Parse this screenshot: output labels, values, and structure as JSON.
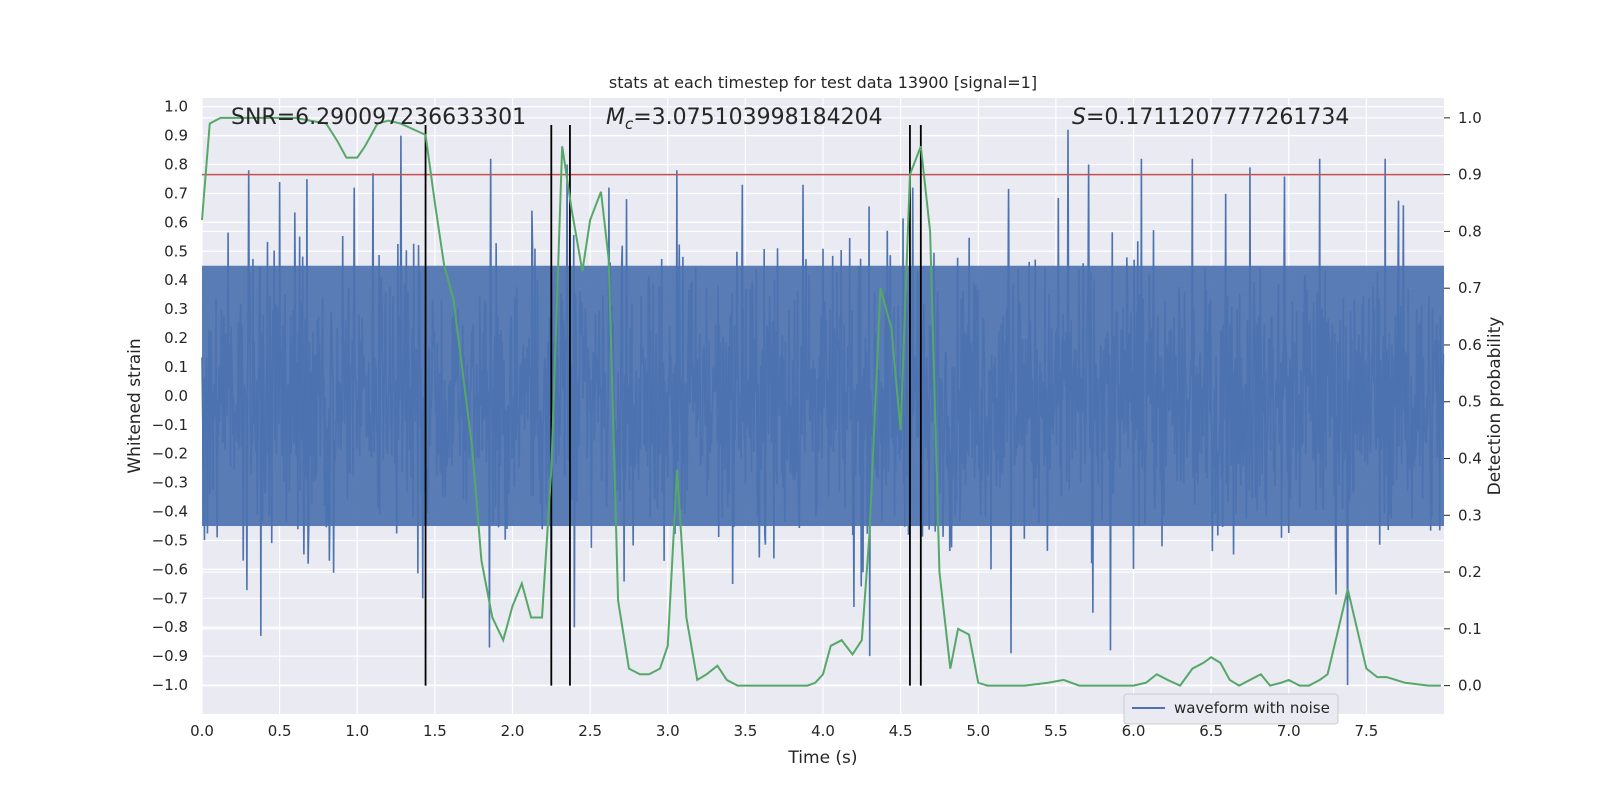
{
  "chart_data": {
    "type": "line",
    "title": "stats at each timestep for test data 13900 [signal=1]",
    "xlabel": "Time (s)",
    "ylabel": "Whitened strain",
    "ylabel_right": "Detection probability",
    "xlim": [
      0.0,
      8.0
    ],
    "ylim": [
      -1.1,
      1.03
    ],
    "ylim_right": [
      -0.05,
      1.035
    ],
    "x_ticks": [
      "0.0",
      "0.5",
      "1.0",
      "1.5",
      "2.0",
      "2.5",
      "3.0",
      "3.5",
      "4.0",
      "4.5",
      "5.0",
      "5.5",
      "6.0",
      "6.5",
      "7.0",
      "7.5"
    ],
    "y_ticks": [
      "−1.0",
      "−0.9",
      "−0.8",
      "−0.7",
      "−0.6",
      "−0.5",
      "−0.4",
      "−0.3",
      "−0.2",
      "−0.1",
      "0.0",
      "0.1",
      "0.2",
      "0.3",
      "0.4",
      "0.5",
      "0.6",
      "0.7",
      "0.8",
      "0.9",
      "1.0"
    ],
    "y_ticks_right": [
      "0.0",
      "0.1",
      "0.2",
      "0.3",
      "0.4",
      "0.5",
      "0.6",
      "0.7",
      "0.8",
      "0.9",
      "1.0"
    ],
    "annotations": {
      "snr": "SNR=6.290097236633301",
      "mc_symbol": "M",
      "mc_sub": "c",
      "mc_value": "=3.075103998184204",
      "s_symbol": "S",
      "s_value": "=0.1711207777261734"
    },
    "threshold": {
      "value": 0.9,
      "axis": "right",
      "color": "#c44e52"
    },
    "vertical_lines": [
      1.44,
      2.25,
      2.37,
      4.56,
      4.63
    ],
    "legend": {
      "label": "waveform with noise",
      "location": "lower-right"
    },
    "series": [
      {
        "name": "waveform with noise",
        "axis": "left",
        "color": "#4c72b0",
        "kind": "noise",
        "x_range": [
          0.0,
          8.0
        ],
        "samples": 2048,
        "envelope": [
          0.45,
          0.45
        ],
        "peaks": [
          {
            "x": 0.3,
            "y": 0.78
          },
          {
            "x": 0.38,
            "y": -0.83
          },
          {
            "x": 0.5,
            "y": 0.74
          },
          {
            "x": 0.98,
            "y": 0.72
          },
          {
            "x": 1.1,
            "y": 0.77
          },
          {
            "x": 1.28,
            "y": 0.9
          },
          {
            "x": 1.42,
            "y": -0.7
          },
          {
            "x": 1.85,
            "y": -0.87
          },
          {
            "x": 1.86,
            "y": 0.82
          },
          {
            "x": 2.25,
            "y": -0.84
          },
          {
            "x": 2.35,
            "y": 0.8
          },
          {
            "x": 2.4,
            "y": -0.8
          },
          {
            "x": 2.62,
            "y": 0.72
          },
          {
            "x": 3.06,
            "y": 0.78
          },
          {
            "x": 3.48,
            "y": 0.73
          },
          {
            "x": 3.87,
            "y": 0.73
          },
          {
            "x": 4.2,
            "y": -0.73
          },
          {
            "x": 4.3,
            "y": -0.9
          },
          {
            "x": 4.58,
            "y": 0.72
          },
          {
            "x": 5.21,
            "y": -0.89
          },
          {
            "x": 5.58,
            "y": 0.92
          },
          {
            "x": 5.71,
            "y": 0.8
          },
          {
            "x": 5.74,
            "y": -0.75
          },
          {
            "x": 5.85,
            "y": -0.88
          },
          {
            "x": 6.05,
            "y": 0.82
          },
          {
            "x": 6.38,
            "y": 0.82
          },
          {
            "x": 6.75,
            "y": 0.79
          },
          {
            "x": 7.2,
            "y": 0.82
          },
          {
            "x": 7.38,
            "y": -1.0
          },
          {
            "x": 7.62,
            "y": 0.82
          }
        ]
      },
      {
        "name": "Detection probability",
        "axis": "right",
        "color": "#55a868",
        "x": [
          0.0,
          0.05,
          0.12,
          0.2,
          0.3,
          0.4,
          0.5,
          0.6,
          0.7,
          0.8,
          0.87,
          0.93,
          1.0,
          1.05,
          1.13,
          1.2,
          1.28,
          1.36,
          1.44,
          1.5,
          1.56,
          1.62,
          1.68,
          1.74,
          1.8,
          1.87,
          1.94,
          2.0,
          2.06,
          2.12,
          2.19,
          2.25,
          2.32,
          2.38,
          2.45,
          2.5,
          2.57,
          2.62,
          2.68,
          2.75,
          2.82,
          2.88,
          2.95,
          3.0,
          3.06,
          3.12,
          3.19,
          3.25,
          3.32,
          3.38,
          3.45,
          3.55,
          3.7,
          3.9,
          3.95,
          4.0,
          4.05,
          4.12,
          4.19,
          4.25,
          4.3,
          4.37,
          4.44,
          4.5,
          4.56,
          4.63,
          4.69,
          4.75,
          4.82,
          4.87,
          4.94,
          5.0,
          5.06,
          5.2,
          5.3,
          5.45,
          5.55,
          5.65,
          5.75,
          5.9,
          6.0,
          6.08,
          6.15,
          6.22,
          6.3,
          6.38,
          6.45,
          6.5,
          6.56,
          6.62,
          6.68,
          6.75,
          6.82,
          6.88,
          6.95,
          7.0,
          7.07,
          7.13,
          7.2,
          7.25,
          7.32,
          7.38,
          7.44,
          7.5,
          7.57,
          7.63,
          7.75,
          7.9,
          7.98
        ],
        "values": [
          0.82,
          0.99,
          1.0,
          1.0,
          1.0,
          1.0,
          1.0,
          1.0,
          0.995,
          0.99,
          0.96,
          0.93,
          0.93,
          0.95,
          0.99,
          0.995,
          0.99,
          0.98,
          0.97,
          0.85,
          0.74,
          0.68,
          0.55,
          0.42,
          0.22,
          0.12,
          0.08,
          0.14,
          0.18,
          0.12,
          0.12,
          0.38,
          0.95,
          0.84,
          0.73,
          0.82,
          0.87,
          0.75,
          0.15,
          0.03,
          0.02,
          0.02,
          0.03,
          0.07,
          0.38,
          0.12,
          0.01,
          0.02,
          0.035,
          0.01,
          0.0,
          0.0,
          0.0,
          0.0,
          0.005,
          0.02,
          0.07,
          0.08,
          0.055,
          0.08,
          0.27,
          0.7,
          0.63,
          0.45,
          0.9,
          0.95,
          0.8,
          0.2,
          0.03,
          0.1,
          0.09,
          0.005,
          0.0,
          0.0,
          0.0,
          0.005,
          0.01,
          0.0,
          0.0,
          0.0,
          0.0,
          0.005,
          0.02,
          0.01,
          0.0,
          0.03,
          0.04,
          0.05,
          0.04,
          0.01,
          0.0,
          0.01,
          0.02,
          0.0,
          0.005,
          0.01,
          0.0,
          0.0,
          0.01,
          0.02,
          0.1,
          0.17,
          0.1,
          0.03,
          0.015,
          0.015,
          0.005,
          0.0,
          0.0
        ]
      }
    ]
  }
}
